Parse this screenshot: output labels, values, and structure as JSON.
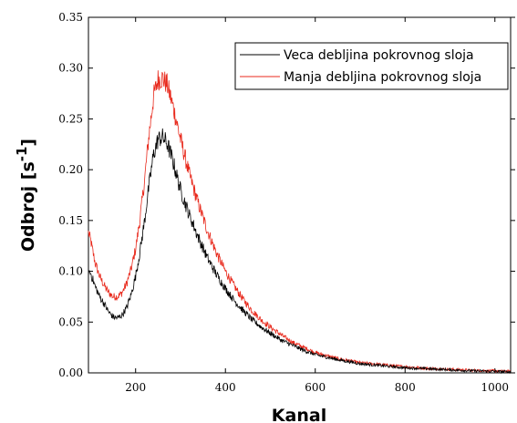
{
  "chart_data": {
    "type": "line",
    "title": "",
    "xlabel": "Kanal",
    "ylabel_main": "Odbroj [s",
    "ylabel_sup": "-1",
    "ylabel_close": "]",
    "xlim": [
      95,
      1035
    ],
    "ylim": [
      0.0,
      0.35
    ],
    "x_ticks": [
      200,
      400,
      600,
      800,
      1000
    ],
    "x_tick_labels": [
      "200",
      "400",
      "600",
      "800",
      "1000"
    ],
    "y_ticks": [
      0.0,
      0.05,
      0.1,
      0.15,
      0.2,
      0.25,
      0.3,
      0.35
    ],
    "y_tick_labels": [
      "0.00",
      "0.05",
      "0.10",
      "0.15",
      "0.20",
      "0.25",
      "0.30",
      "0.35"
    ],
    "grid": false,
    "legend_position": "top-right",
    "series": [
      {
        "name": "Veca debljina pokrovnog sloja",
        "color": "#000000",
        "x": [
          95,
          100,
          110,
          120,
          130,
          140,
          150,
          160,
          170,
          180,
          190,
          200,
          210,
          220,
          230,
          240,
          250,
          260,
          270,
          280,
          290,
          300,
          320,
          340,
          360,
          380,
          400,
          420,
          440,
          460,
          480,
          500,
          525,
          550,
          575,
          600,
          650,
          700,
          750,
          800,
          850,
          900,
          950,
          1000,
          1035
        ],
        "y": [
          0.1,
          0.098,
          0.085,
          0.075,
          0.068,
          0.06,
          0.055,
          0.054,
          0.057,
          0.064,
          0.077,
          0.095,
          0.12,
          0.15,
          0.185,
          0.215,
          0.23,
          0.232,
          0.226,
          0.213,
          0.197,
          0.18,
          0.155,
          0.133,
          0.113,
          0.097,
          0.083,
          0.071,
          0.061,
          0.052,
          0.045,
          0.039,
          0.032,
          0.027,
          0.022,
          0.018,
          0.013,
          0.009,
          0.007,
          0.005,
          0.004,
          0.003,
          0.002,
          0.0015,
          0.001
        ]
      },
      {
        "name": "Manja debljina pokrovnog sloja",
        "color": "#e8291c",
        "x": [
          95,
          100,
          110,
          120,
          130,
          140,
          150,
          160,
          170,
          180,
          190,
          200,
          210,
          220,
          230,
          240,
          250,
          260,
          270,
          280,
          290,
          300,
          320,
          340,
          360,
          380,
          400,
          420,
          440,
          460,
          480,
          500,
          525,
          550,
          575,
          600,
          650,
          700,
          750,
          800,
          850,
          900,
          950,
          1000,
          1035
        ],
        "y": [
          0.138,
          0.13,
          0.108,
          0.095,
          0.086,
          0.079,
          0.075,
          0.075,
          0.079,
          0.088,
          0.102,
          0.122,
          0.152,
          0.19,
          0.235,
          0.272,
          0.289,
          0.29,
          0.284,
          0.268,
          0.25,
          0.23,
          0.195,
          0.166,
          0.14,
          0.118,
          0.1,
          0.085,
          0.072,
          0.061,
          0.052,
          0.045,
          0.037,
          0.03,
          0.025,
          0.02,
          0.014,
          0.01,
          0.008,
          0.006,
          0.0045,
          0.0035,
          0.0025,
          0.002,
          0.0015
        ]
      }
    ]
  }
}
